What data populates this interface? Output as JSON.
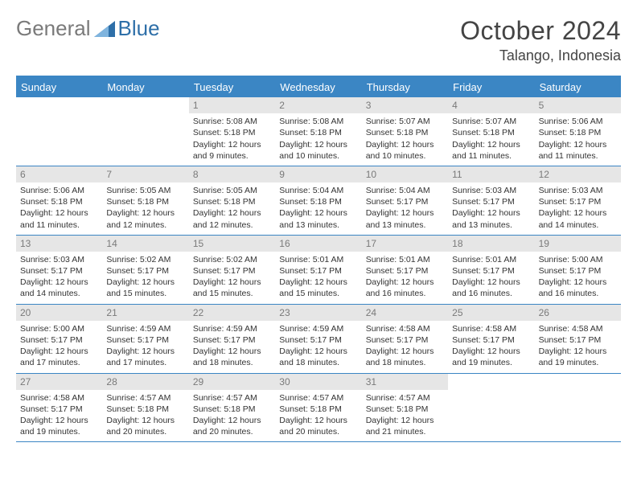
{
  "brand": {
    "part1": "General",
    "part2": "Blue"
  },
  "colors": {
    "accent": "#3b86c4",
    "dayLabel": "#7a7a7a",
    "headerBg": "#3b86c4",
    "dayBarBg": "#e6e6e6"
  },
  "title": {
    "month": "October 2024",
    "location": "Talango, Indonesia"
  },
  "dayNames": [
    "Sunday",
    "Monday",
    "Tuesday",
    "Wednesday",
    "Thursday",
    "Friday",
    "Saturday"
  ],
  "firstWeekday": 2,
  "daysInMonth": 31,
  "days": {
    "1": {
      "sr": "5:08 AM",
      "ss": "5:18 PM",
      "dl": "12 hours and 9 minutes."
    },
    "2": {
      "sr": "5:08 AM",
      "ss": "5:18 PM",
      "dl": "12 hours and 10 minutes."
    },
    "3": {
      "sr": "5:07 AM",
      "ss": "5:18 PM",
      "dl": "12 hours and 10 minutes."
    },
    "4": {
      "sr": "5:07 AM",
      "ss": "5:18 PM",
      "dl": "12 hours and 11 minutes."
    },
    "5": {
      "sr": "5:06 AM",
      "ss": "5:18 PM",
      "dl": "12 hours and 11 minutes."
    },
    "6": {
      "sr": "5:06 AM",
      "ss": "5:18 PM",
      "dl": "12 hours and 11 minutes."
    },
    "7": {
      "sr": "5:05 AM",
      "ss": "5:18 PM",
      "dl": "12 hours and 12 minutes."
    },
    "8": {
      "sr": "5:05 AM",
      "ss": "5:18 PM",
      "dl": "12 hours and 12 minutes."
    },
    "9": {
      "sr": "5:04 AM",
      "ss": "5:18 PM",
      "dl": "12 hours and 13 minutes."
    },
    "10": {
      "sr": "5:04 AM",
      "ss": "5:17 PM",
      "dl": "12 hours and 13 minutes."
    },
    "11": {
      "sr": "5:03 AM",
      "ss": "5:17 PM",
      "dl": "12 hours and 13 minutes."
    },
    "12": {
      "sr": "5:03 AM",
      "ss": "5:17 PM",
      "dl": "12 hours and 14 minutes."
    },
    "13": {
      "sr": "5:03 AM",
      "ss": "5:17 PM",
      "dl": "12 hours and 14 minutes."
    },
    "14": {
      "sr": "5:02 AM",
      "ss": "5:17 PM",
      "dl": "12 hours and 15 minutes."
    },
    "15": {
      "sr": "5:02 AM",
      "ss": "5:17 PM",
      "dl": "12 hours and 15 minutes."
    },
    "16": {
      "sr": "5:01 AM",
      "ss": "5:17 PM",
      "dl": "12 hours and 15 minutes."
    },
    "17": {
      "sr": "5:01 AM",
      "ss": "5:17 PM",
      "dl": "12 hours and 16 minutes."
    },
    "18": {
      "sr": "5:01 AM",
      "ss": "5:17 PM",
      "dl": "12 hours and 16 minutes."
    },
    "19": {
      "sr": "5:00 AM",
      "ss": "5:17 PM",
      "dl": "12 hours and 16 minutes."
    },
    "20": {
      "sr": "5:00 AM",
      "ss": "5:17 PM",
      "dl": "12 hours and 17 minutes."
    },
    "21": {
      "sr": "4:59 AM",
      "ss": "5:17 PM",
      "dl": "12 hours and 17 minutes."
    },
    "22": {
      "sr": "4:59 AM",
      "ss": "5:17 PM",
      "dl": "12 hours and 18 minutes."
    },
    "23": {
      "sr": "4:59 AM",
      "ss": "5:17 PM",
      "dl": "12 hours and 18 minutes."
    },
    "24": {
      "sr": "4:58 AM",
      "ss": "5:17 PM",
      "dl": "12 hours and 18 minutes."
    },
    "25": {
      "sr": "4:58 AM",
      "ss": "5:17 PM",
      "dl": "12 hours and 19 minutes."
    },
    "26": {
      "sr": "4:58 AM",
      "ss": "5:17 PM",
      "dl": "12 hours and 19 minutes."
    },
    "27": {
      "sr": "4:58 AM",
      "ss": "5:17 PM",
      "dl": "12 hours and 19 minutes."
    },
    "28": {
      "sr": "4:57 AM",
      "ss": "5:18 PM",
      "dl": "12 hours and 20 minutes."
    },
    "29": {
      "sr": "4:57 AM",
      "ss": "5:18 PM",
      "dl": "12 hours and 20 minutes."
    },
    "30": {
      "sr": "4:57 AM",
      "ss": "5:18 PM",
      "dl": "12 hours and 20 minutes."
    },
    "31": {
      "sr": "4:57 AM",
      "ss": "5:18 PM",
      "dl": "12 hours and 21 minutes."
    }
  },
  "labels": {
    "sunrise": "Sunrise: ",
    "sunset": "Sunset: ",
    "daylight": "Daylight: "
  }
}
